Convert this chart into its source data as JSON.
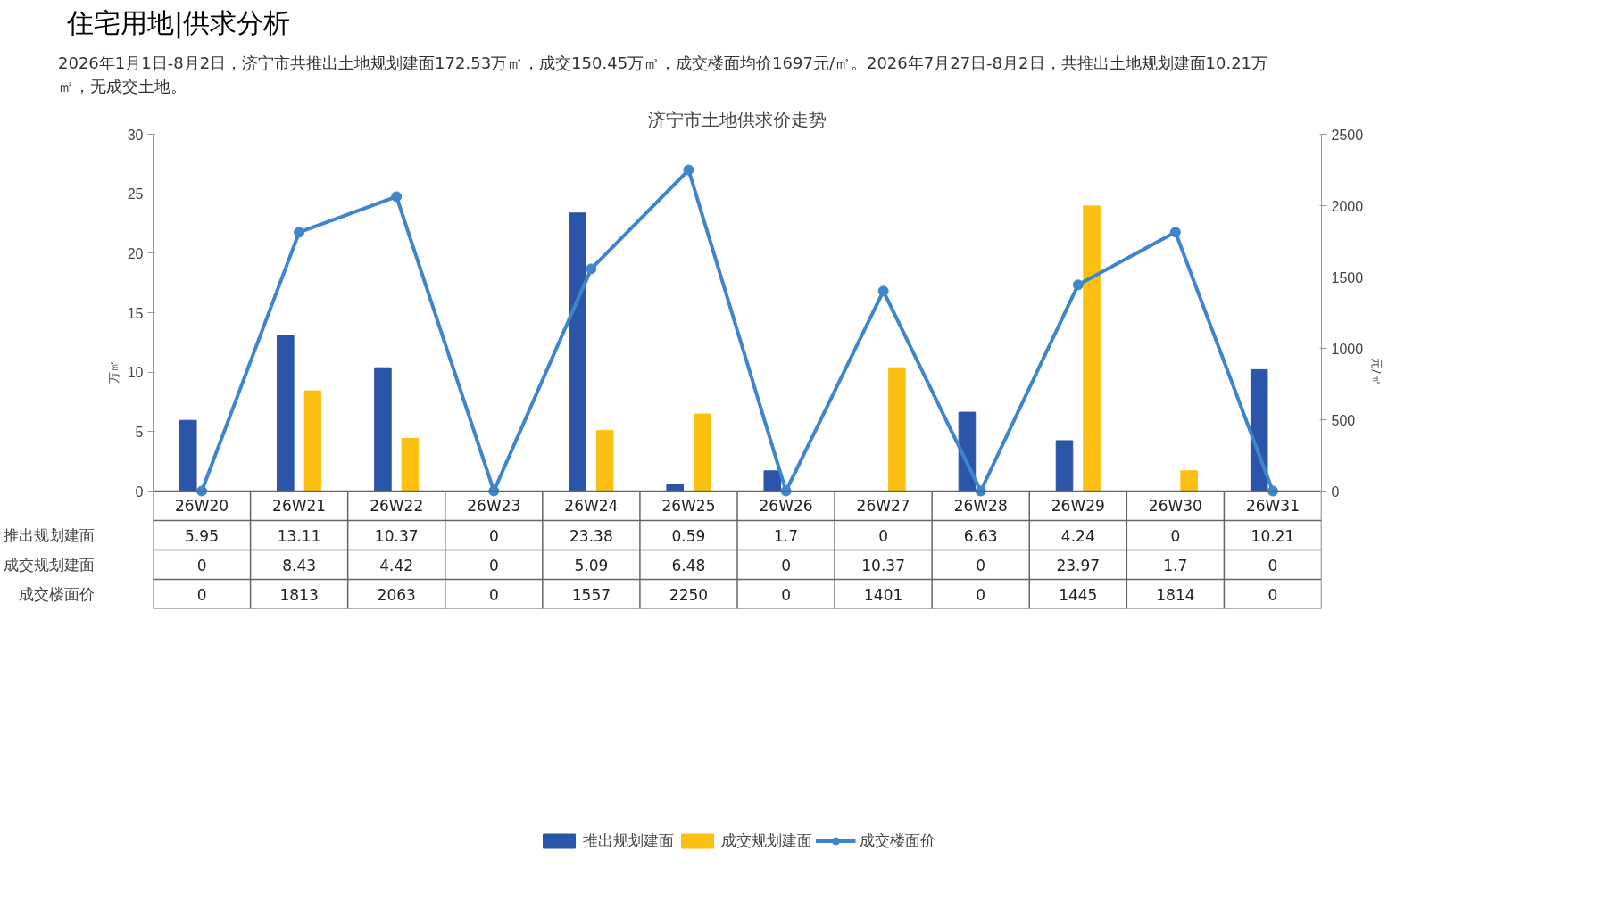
{
  "chart_data": {
    "type": "bar",
    "title": "济宁市土地供求价走势",
    "annotations": [
      "住宅用地|供求分析",
      "2026年1月1日-8月2日，济宁市共推出土地规划建面172.53万㎡，成交150.45万㎡，成交楼面均价1697元/㎡。2026年7月27日-8月2日，共推出土地规划建面10.21万㎡，无成交土地。"
    ],
    "ylabel": "万㎡",
    "y2label": "元/㎡",
    "categories": [
      "26W20",
      "26W21",
      "26W22",
      "26W23",
      "26W24",
      "26W25",
      "26W26",
      "26W27",
      "26W28",
      "26W29",
      "26W30",
      "26W31"
    ],
    "series": [
      {
        "name": "推出规划建面",
        "color": "#2b55a8",
        "values": [
          5.95,
          13.11,
          10.37,
          0,
          23.38,
          0.59,
          1.7,
          0,
          6.63,
          4.24,
          0,
          10.21
        ]
      },
      {
        "name": "成交规划建面",
        "color": "#fcc012",
        "values": [
          0,
          8.43,
          4.42,
          0,
          5.09,
          6.48,
          0,
          10.37,
          0,
          23.97,
          1.7,
          0
        ]
      },
      {
        "name": "成交楼面价",
        "type": "line",
        "axis": "y2",
        "color": "#3f85cc",
        "marker": "circle",
        "values": [
          0,
          1813,
          2063,
          0,
          1557,
          2250,
          0,
          1401,
          0,
          1445,
          1814,
          0
        ]
      }
    ],
    "ylim": [
      0,
      30
    ],
    "yticks": [
      0,
      5,
      10,
      15,
      20,
      25,
      30
    ],
    "y2lim": [
      0,
      2500
    ],
    "y2ticks": [
      0,
      500,
      1000,
      1500,
      2000,
      2500
    ],
    "grid": false,
    "legend": "bottom",
    "data_labels": true
  }
}
